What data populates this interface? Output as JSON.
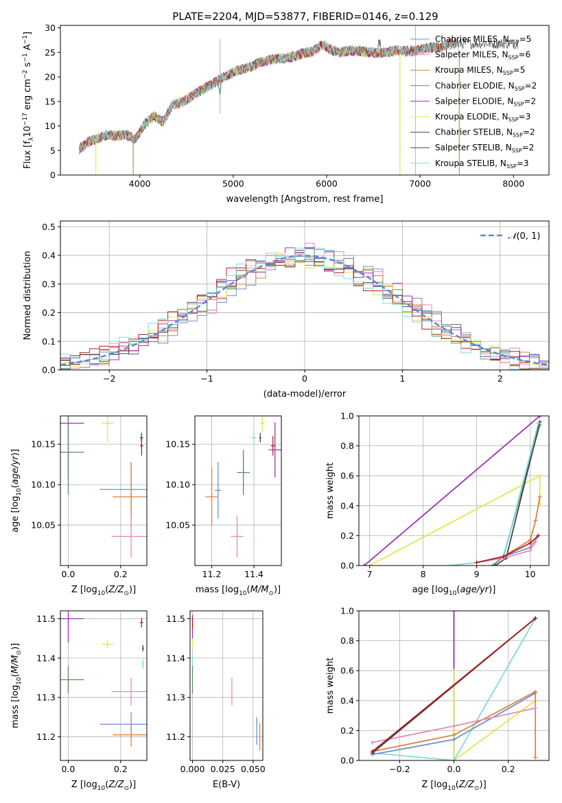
{
  "figure_title": "PLATE=2204, MJD=53877, FIBERID=0146, z=0.129",
  "chart_data": [
    {
      "id": "spectrum",
      "type": "line",
      "xlabel": "wavelength [Angstrom, rest frame]",
      "ylabel": "Flux [f_λ 10^-17 erg cm^-2 s^-1 A^-1]",
      "xlim": [
        3150,
        8380
      ],
      "ylim": [
        0,
        30.5
      ],
      "xticks": [
        4000,
        5000,
        6000,
        7000,
        8000
      ],
      "yticks": [
        0,
        5,
        10,
        15,
        20,
        25,
        30
      ],
      "grid": false,
      "legend_position": "right",
      "data_x": [
        3350,
        3450,
        3550,
        3650,
        3750,
        3850,
        3950,
        4050,
        4150,
        4250,
        4350,
        4450,
        4550,
        4650,
        4750,
        4850,
        4950,
        5050,
        5150,
        5250,
        5350,
        5450,
        5550,
        5650,
        5750,
        5850,
        5950,
        6050,
        6150,
        6250,
        6350,
        6450,
        6550,
        6650,
        6750,
        6850,
        6950,
        7050,
        7150,
        7250,
        7350
      ],
      "data_y": [
        5.3,
        6.8,
        7.4,
        8.2,
        8.0,
        8.2,
        7.3,
        10.3,
        12.0,
        10.8,
        14.3,
        14.8,
        16.0,
        17.2,
        18.3,
        19.4,
        20.5,
        21.3,
        21.8,
        22.7,
        23.2,
        23.7,
        23.8,
        24.2,
        24.8,
        25.2,
        26.5,
        25.5,
        25.0,
        25.4,
        25.3,
        25.0,
        24.9,
        25.0,
        25.4,
        25.2,
        25.3,
        25.8,
        26.0,
        26.2,
        26.8
      ],
      "model_cutoffs": [
        {
          "x": 7420,
          "ystart": 25.5,
          "yend": 0
        },
        {
          "x": 6785,
          "ystart": 25.2,
          "yend": 0
        },
        {
          "x": 3930,
          "ystart": 0,
          "yend": 7.0
        },
        {
          "x": 3530,
          "ystart": 0,
          "yend": 7.3
        }
      ],
      "legend": [
        {
          "label": "Chabrier MILES, N",
          "sub": "SSP",
          "suffix": "=5",
          "color": "#6a8fd6"
        },
        {
          "label": "Salpeter MILES, N",
          "sub": "SSP",
          "suffix": "=6",
          "color": "#e388bd"
        },
        {
          "label": "Kroupa MILES, N",
          "sub": "SSP",
          "suffix": "=5",
          "color": "#d9823b"
        },
        {
          "label": "Chabrier ELODIE, N",
          "sub": "SSP",
          "suffix": "=2",
          "color": "#5a8a60"
        },
        {
          "label": "Salpeter ELODIE, N",
          "sub": "SSP",
          "suffix": "=2",
          "color": "#9b30b5"
        },
        {
          "label": "Kroupa ELODIE, N",
          "sub": "SSP",
          "suffix": "=3",
          "color": "#dde84a"
        },
        {
          "label": "Chabrier STELIB, N",
          "sub": "SSP",
          "suffix": "=2",
          "color": "#444444"
        },
        {
          "label": "Salpeter STELIB, N",
          "sub": "SSP",
          "suffix": "=2",
          "color": "#b01e1e"
        },
        {
          "label": "Kroupa STELIB, N",
          "sub": "SSP",
          "suffix": "=3",
          "color": "#7fd9de"
        }
      ]
    },
    {
      "id": "residuals",
      "type": "line",
      "xlabel": "(data-model)/error",
      "ylabel": "Normed distribution",
      "xlim": [
        -2.5,
        2.5
      ],
      "ylim": [
        0,
        0.52
      ],
      "xticks": [
        -2,
        -1,
        0,
        1,
        2
      ],
      "yticks": [
        0.0,
        0.1,
        0.2,
        0.3,
        0.4,
        0.5
      ],
      "grid": true,
      "legend_position": "top-right",
      "legend_label": "N(0, 1)",
      "gaussian_color": "#5a8ad6",
      "bin_width": 0.1,
      "series_colors": [
        "#6a8fd6",
        "#e388bd",
        "#d9823b",
        "#5a8a60",
        "#9b30b5",
        "#dde84a",
        "#444444",
        "#b01e1e",
        "#7fd9de"
      ]
    },
    {
      "id": "age_vs_Z",
      "type": "scatter",
      "xlabel": "Z [log10(Z/Z⊙)]",
      "ylabel": "age  [log10(age/yr)]",
      "xlim": [
        -0.03,
        0.3
      ],
      "ylim": [
        10.0,
        10.185
      ],
      "xticks": [
        0.0,
        0.2
      ],
      "yticks": [
        10.05,
        10.1,
        10.15
      ],
      "grid": true,
      "points": [
        {
          "color": "#9b30b5",
          "x": 0.0,
          "xerr": 0.06,
          "y": 10.176,
          "yerr": 0.068
        },
        {
          "color": "#5a8a60",
          "x": 0.0,
          "xerr": 0.06,
          "y": 10.14,
          "yerr": 0.052
        },
        {
          "color": "#dde84a",
          "x": 0.15,
          "xerr": 0.022,
          "y": 10.176,
          "yerr": 0.024
        },
        {
          "color": "#6a8fd6",
          "x": 0.24,
          "xerr": 0.12,
          "y": 10.094,
          "yerr": 0.034
        },
        {
          "color": "#d9823b",
          "x": 0.24,
          "xerr": 0.07,
          "y": 10.085,
          "yerr": 0.038
        },
        {
          "color": "#e388bd",
          "x": 0.24,
          "xerr": 0.075,
          "y": 10.036,
          "yerr": 0.026
        },
        {
          "color": "#7fd9de",
          "x": 0.28,
          "xerr": 0.006,
          "y": 10.156,
          "yerr": 0.01
        },
        {
          "color": "#444444",
          "x": 0.28,
          "xerr": 0.006,
          "y": 10.158,
          "yerr": 0.006
        },
        {
          "color": "#b01e1e",
          "x": 0.28,
          "xerr": 0.006,
          "y": 10.148,
          "yerr": 0.012
        }
      ]
    },
    {
      "id": "age_vs_mass",
      "type": "scatter",
      "xlabel": "mass [log10(M/M⊙)]",
      "ylabel": "",
      "xlim": [
        11.12,
        11.53
      ],
      "ylim": [
        10.0,
        10.185
      ],
      "xticks": [
        11.2,
        11.4
      ],
      "yticks": [
        10.05,
        10.1,
        10.15
      ],
      "grid": true,
      "points": [
        {
          "color": "#9b30b5",
          "x": 11.5,
          "xerr": 0.03,
          "y": 10.143,
          "yerr": 0.034
        },
        {
          "color": "#b01e1e",
          "x": 11.49,
          "xerr": 0.01,
          "y": 10.148,
          "yerr": 0.012
        },
        {
          "color": "#dde84a",
          "x": 11.44,
          "xerr": 0.01,
          "y": 10.176,
          "yerr": 0.01
        },
        {
          "color": "#444444",
          "x": 11.43,
          "xerr": 0.005,
          "y": 10.158,
          "yerr": 0.006
        },
        {
          "color": "#7fd9de",
          "x": 11.4,
          "xerr": 0.012,
          "y": 10.158,
          "yerr": 0.006
        },
        {
          "color": "#5a8a60",
          "x": 11.35,
          "xerr": 0.03,
          "y": 10.115,
          "yerr": 0.028
        },
        {
          "color": "#e388bd",
          "x": 11.32,
          "xerr": 0.03,
          "y": 10.036,
          "yerr": 0.026
        },
        {
          "color": "#6a8fd6",
          "x": 11.23,
          "xerr": 0.015,
          "y": 10.093,
          "yerr": 0.035
        },
        {
          "color": "#d9823b",
          "x": 11.2,
          "xerr": 0.03,
          "y": 10.085,
          "yerr": 0.036
        }
      ]
    },
    {
      "id": "cum_mass_age",
      "type": "line",
      "xlabel": "age  [log10(age/yr)]",
      "ylabel": "mass weight",
      "xlim": [
        6.8,
        10.35
      ],
      "ylim": [
        0,
        1.0
      ],
      "xticks": [
        7,
        8,
        9,
        10
      ],
      "yticks": [
        0.0,
        0.2,
        0.4,
        0.6,
        0.8,
        1.0
      ],
      "grid": true,
      "series": [
        {
          "color": "#9b30b5",
          "x": [
            6.9,
            10.18
          ],
          "y": [
            0.0,
            1.0
          ]
        },
        {
          "color": "#dde84a",
          "x": [
            7.0,
            10.18,
            10.18
          ],
          "y": [
            0.0,
            0.6,
            0.4
          ]
        },
        {
          "color": "#5a8a60",
          "x": [
            9.3,
            9.5,
            10.18
          ],
          "y": [
            0.0,
            0.06,
            0.94
          ]
        },
        {
          "color": "#444444",
          "x": [
            9.35,
            9.55,
            10.18
          ],
          "y": [
            0.0,
            0.05,
            0.96
          ]
        },
        {
          "color": "#7fd9de",
          "x": [
            8.5,
            9.0,
            9.5,
            10.15
          ],
          "y": [
            0.0,
            0.02,
            0.05,
            0.95
          ]
        },
        {
          "color": "#6a8fd6",
          "x": [
            9.0,
            9.5,
            10.0,
            10.05,
            10.15
          ],
          "y": [
            0.02,
            0.06,
            0.12,
            0.14,
            0.2
          ]
        },
        {
          "color": "#d9823b",
          "x": [
            9.0,
            9.5,
            10.0,
            10.1,
            10.18
          ],
          "y": [
            0.02,
            0.06,
            0.17,
            0.3,
            0.46
          ]
        },
        {
          "color": "#e388bd",
          "x": [
            9.0,
            9.5,
            10.0,
            10.05,
            10.1
          ],
          "y": [
            0.02,
            0.05,
            0.1,
            0.14,
            0.16
          ]
        },
        {
          "color": "#b01e1e",
          "x": [
            9.0,
            9.5,
            10.0,
            10.15
          ],
          "y": [
            0.02,
            0.06,
            0.15,
            0.2
          ]
        }
      ]
    },
    {
      "id": "mass_vs_Z",
      "type": "scatter",
      "xlabel": "Z [log10(Z/Z⊙)]",
      "ylabel": "mass [log10(M/M⊙)]",
      "xlim": [
        -0.03,
        0.3
      ],
      "ylim": [
        11.14,
        11.52
      ],
      "xticks": [
        0.0,
        0.2
      ],
      "yticks": [
        11.2,
        11.3,
        11.4,
        11.5
      ],
      "grid": true,
      "points": [
        {
          "color": "#9b30b5",
          "x": 0.0,
          "xerr": 0.06,
          "y": 11.5,
          "yerr": 0.06
        },
        {
          "color": "#5a8a60",
          "x": 0.0,
          "xerr": 0.06,
          "y": 11.345,
          "yerr": 0.035
        },
        {
          "color": "#dde84a",
          "x": 0.15,
          "xerr": 0.022,
          "y": 11.435,
          "yerr": 0.01
        },
        {
          "color": "#e388bd",
          "x": 0.24,
          "xerr": 0.075,
          "y": 11.315,
          "yerr": 0.035
        },
        {
          "color": "#6a8fd6",
          "x": 0.24,
          "xerr": 0.12,
          "y": 11.232,
          "yerr": 0.03
        },
        {
          "color": "#d9823b",
          "x": 0.24,
          "xerr": 0.07,
          "y": 11.205,
          "yerr": 0.03
        },
        {
          "color": "#b01e1e",
          "x": 0.28,
          "xerr": 0.006,
          "y": 11.49,
          "yerr": 0.012
        },
        {
          "color": "#444444",
          "x": 0.285,
          "xerr": 0.004,
          "y": 11.425,
          "yerr": 0.008
        },
        {
          "color": "#7fd9de",
          "x": 0.285,
          "xerr": 0.003,
          "y": 11.385,
          "yerr": 0.012
        }
      ]
    },
    {
      "id": "mass_vs_ebv",
      "type": "scatter",
      "xlabel": "E(B-V)",
      "ylabel": "",
      "xlim": [
        -0.002,
        0.058
      ],
      "ylim": [
        11.14,
        11.52
      ],
      "xticks": [
        0.0,
        0.025,
        0.05
      ],
      "xticklabels": [
        "0.000",
        "0.025",
        "0.050"
      ],
      "yticks": [
        11.2,
        11.3,
        11.4,
        11.5
      ],
      "grid": true,
      "points": [
        {
          "color": "#9b30b5",
          "x": 0.0,
          "xerr": 0.0,
          "y": 11.48,
          "yerr": 0.03
        },
        {
          "color": "#b01e1e",
          "x": 0.0,
          "xerr": 0.0,
          "y": 11.49,
          "yerr": 0.015
        },
        {
          "color": "#dde84a",
          "x": 0.0,
          "xerr": 0.0,
          "y": 11.435,
          "yerr": 0.012
        },
        {
          "color": "#7fd9de",
          "x": 0.0,
          "xerr": 0.0,
          "y": 11.39,
          "yerr": 0.015
        },
        {
          "color": "#5a8a60",
          "x": 0.0,
          "xerr": 0.0,
          "y": 11.345,
          "yerr": 0.035
        },
        {
          "color": "#e388bd",
          "x": 0.0325,
          "xerr": 0.0,
          "y": 11.315,
          "yerr": 0.035
        },
        {
          "color": "#6a8fd6",
          "x": 0.053,
          "xerr": 0.0,
          "y": 11.215,
          "yerr": 0.035
        },
        {
          "color": "#d9823b",
          "x": 0.0555,
          "xerr": 0.0,
          "y": 11.2,
          "yerr": 0.035
        }
      ]
    },
    {
      "id": "cum_mass_Z",
      "type": "line",
      "xlabel": "Z [log10(Z/Z⊙)]",
      "ylabel": "mass weight",
      "xlim": [
        -0.35,
        0.35
      ],
      "ylim": [
        0,
        1.0
      ],
      "xticks": [
        -0.2,
        0.0,
        0.2
      ],
      "yticks": [
        0.0,
        0.2,
        0.4,
        0.6,
        0.8,
        1.0
      ],
      "grid": true,
      "series": [
        {
          "color": "#9b30b5",
          "x": [
            0.0,
            0.0
          ],
          "y": [
            0.0,
            1.0
          ]
        },
        {
          "color": "#dde84a",
          "x": [
            0.0,
            0.0,
            0.3
          ],
          "y": [
            0.6,
            0.0,
            0.4
          ]
        },
        {
          "color": "#7fd9de",
          "x": [
            -0.3,
            0.0,
            0.3
          ],
          "y": [
            0.05,
            0.0,
            0.95
          ]
        },
        {
          "color": "#6a8fd6",
          "x": [
            -0.3,
            0.0,
            0.3
          ],
          "y": [
            0.04,
            0.14,
            0.45
          ]
        },
        {
          "color": "#d9823b",
          "x": [
            -0.3,
            0.0,
            0.3,
            0.3
          ],
          "y": [
            0.06,
            0.17,
            0.46,
            0.02
          ]
        },
        {
          "color": "#e388bd",
          "x": [
            -0.3,
            0.0,
            0.3
          ],
          "y": [
            0.12,
            0.23,
            0.35
          ]
        },
        {
          "color": "#5a8a60",
          "x": [
            -0.3,
            0.3
          ],
          "y": [
            0.06,
            0.95
          ]
        },
        {
          "color": "#444444",
          "x": [
            -0.3,
            0.3
          ],
          "y": [
            0.05,
            0.95
          ]
        },
        {
          "color": "#b01e1e",
          "x": [
            -0.3,
            0.3
          ],
          "y": [
            0.06,
            0.95
          ]
        }
      ]
    }
  ]
}
